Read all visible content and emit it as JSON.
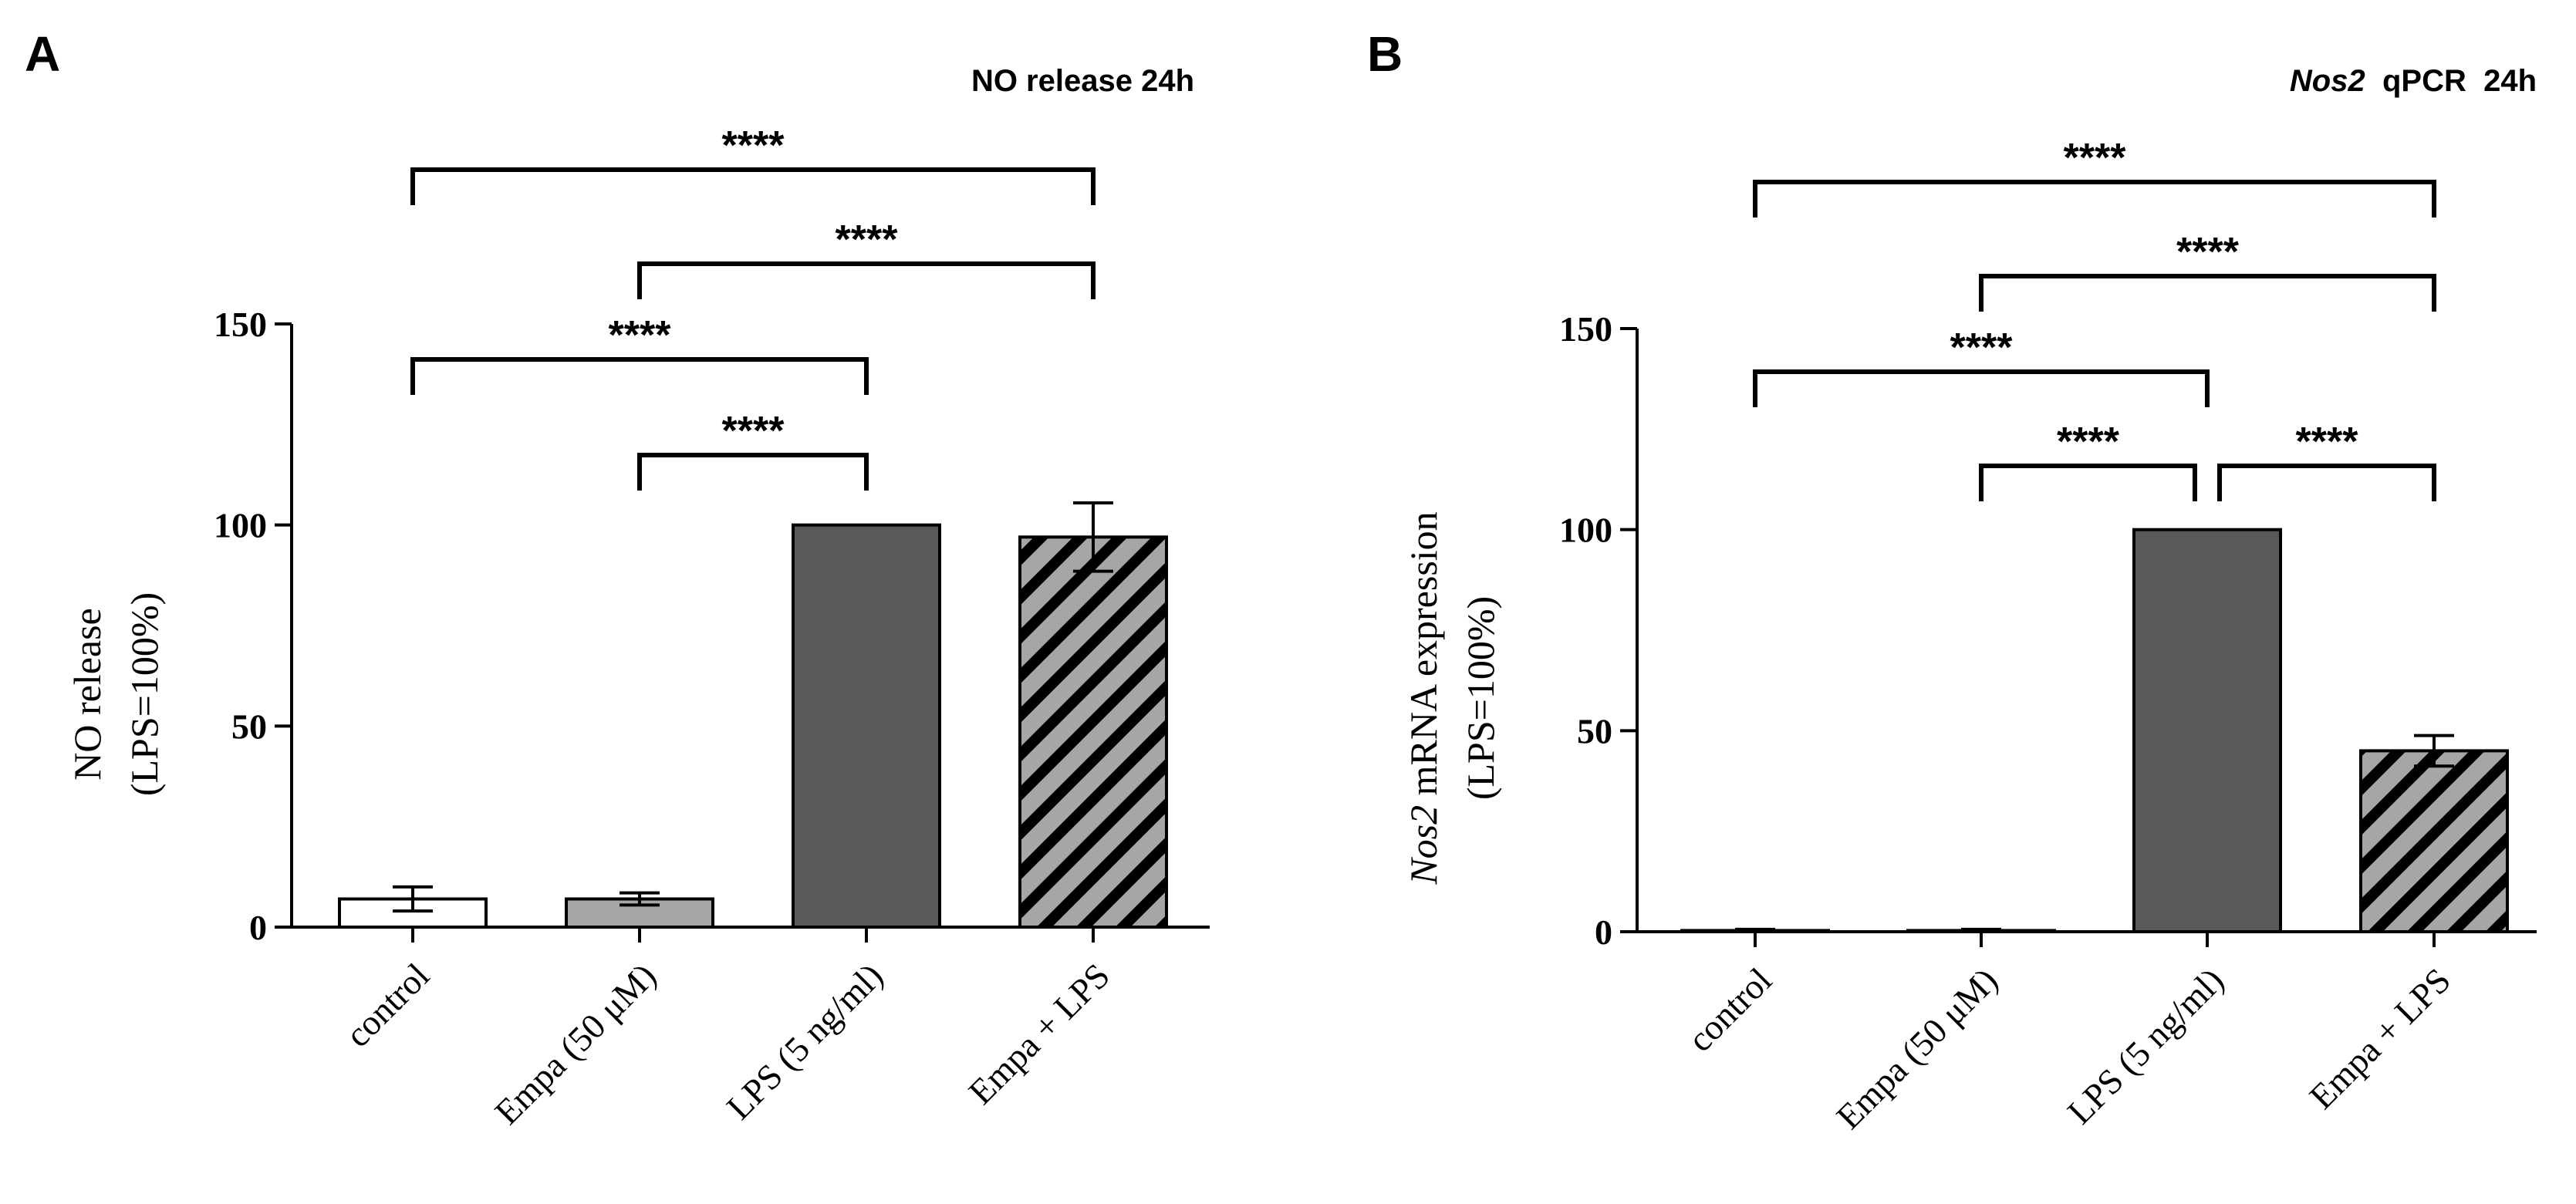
{
  "chart_data": [
    {
      "type": "bar",
      "panel_label": "A",
      "title": "NO release  24h",
      "ylabel_line1": "NO release",
      "ylabel_line2": "(LPS=100%)",
      "ylim": [
        0,
        150
      ],
      "yticks": [
        "0",
        "50",
        "100",
        "150"
      ],
      "categories": [
        "control",
        "Empa (50 μM)",
        "LPS (5 ng/ml)",
        "Empa + LPS"
      ],
      "values": [
        7,
        7,
        100,
        97
      ],
      "errors": [
        3,
        1.5,
        0,
        8.5
      ],
      "fills": [
        "#ffffff",
        "#a6a6a6",
        "#595959",
        "#a6a6a6"
      ],
      "hatched": [
        false,
        false,
        false,
        true
      ],
      "significance": [
        {
          "from": 0,
          "to": 3,
          "label": "****"
        },
        {
          "from": 1,
          "to": 3,
          "label": "****"
        },
        {
          "from": 0,
          "to": 2,
          "label": "****"
        },
        {
          "from": 1,
          "to": 2,
          "label": "****"
        }
      ]
    },
    {
      "type": "bar",
      "panel_label": "B",
      "title_italic": "Nos2",
      "title_rest": "  qPCR  24h",
      "ylabel_line1_italic": "Nos2",
      "ylabel_line1_rest": " mRNA expression",
      "ylabel_line2": "(LPS=100%)",
      "ylim": [
        0,
        150
      ],
      "yticks": [
        "0",
        "50",
        "100",
        "150"
      ],
      "categories": [
        "control",
        "Empa (50 μM)",
        "LPS (5 ng/ml)",
        "Empa + LPS"
      ],
      "values": [
        0.3,
        0.3,
        100,
        45
      ],
      "errors": [
        0.3,
        0.3,
        0,
        3.8
      ],
      "fills": [
        "#ffffff",
        "#a6a6a6",
        "#595959",
        "#a6a6a6"
      ],
      "hatched": [
        false,
        false,
        false,
        true
      ],
      "significance": [
        {
          "from": 0,
          "to": 3,
          "label": "****"
        },
        {
          "from": 1,
          "to": 3,
          "label": "****"
        },
        {
          "from": 0,
          "to": 2,
          "label": "****"
        },
        {
          "from": 1,
          "to": 2,
          "label": "****"
        },
        {
          "from": 2,
          "to": 3,
          "label": "****"
        }
      ]
    }
  ]
}
